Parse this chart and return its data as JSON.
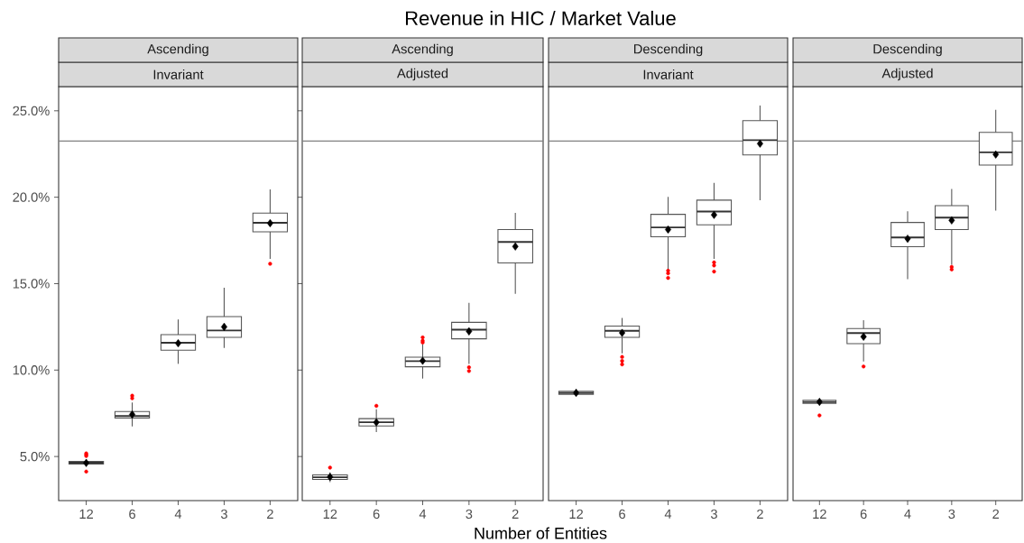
{
  "chart_data": [
    {
      "type": "box",
      "title": "Ascending",
      "subtitle": "Invariant",
      "categories": [
        "12",
        "6",
        "4",
        "3",
        "2"
      ],
      "boxes": [
        {
          "low": 4.5,
          "q1": 4.57,
          "median": 4.64,
          "q3": 4.72,
          "high": 4.85,
          "mean": 4.63,
          "outliers": [
            5.18,
            5.1,
            5.03,
            4.13
          ]
        },
        {
          "low": 6.74,
          "q1": 7.22,
          "median": 7.34,
          "q3": 7.6,
          "high": 8.13,
          "mean": 7.43,
          "outliers": [
            8.52,
            8.37
          ]
        },
        {
          "low": 10.36,
          "q1": 11.15,
          "median": 11.58,
          "q3": 12.05,
          "high": 12.93,
          "mean": 11.55
        },
        {
          "low": 11.28,
          "q1": 11.89,
          "median": 12.29,
          "q3": 13.09,
          "high": 14.76,
          "mean": 12.5
        },
        {
          "low": 16.44,
          "q1": 18.0,
          "median": 18.52,
          "q3": 19.08,
          "high": 20.45,
          "mean": 18.5,
          "outliers": [
            16.15
          ]
        }
      ],
      "ylim": [
        2.45,
        26.4
      ],
      "yticks": [
        {
          "value": 5,
          "label": "5.0%"
        },
        {
          "value": 10,
          "label": "10.0%"
        },
        {
          "value": 15,
          "label": "15.0%"
        },
        {
          "value": 20,
          "label": "20.0%"
        },
        {
          "value": 25,
          "label": "25.0%"
        }
      ],
      "ref_lines": [
        {
          "axis": "y",
          "value": 23.25,
          "color": "#808080"
        }
      ]
    },
    {
      "type": "box",
      "title": "Ascending",
      "subtitle": "Adjusted",
      "annotations": [
        "Revenue in HIC / Market Value"
      ],
      "xlabel": "Number of Entities",
      "categories": [
        "12",
        "6",
        "4",
        "3",
        "2"
      ],
      "boxes": [
        {
          "low": 3.52,
          "q1": 3.68,
          "median": 3.8,
          "q3": 3.94,
          "high": 4.08,
          "mean": 3.82,
          "outliers": [
            4.36
          ]
        },
        {
          "low": 6.42,
          "q1": 6.77,
          "median": 6.98,
          "q3": 7.19,
          "high": 7.73,
          "mean": 6.98,
          "outliers": [
            7.93
          ]
        },
        {
          "low": 9.51,
          "q1": 10.19,
          "median": 10.52,
          "q3": 10.75,
          "high": 11.51,
          "mean": 10.54,
          "outliers": [
            11.89,
            11.7,
            11.6
          ]
        },
        {
          "low": 10.36,
          "q1": 11.81,
          "median": 12.34,
          "q3": 12.76,
          "high": 13.89,
          "mean": 12.24,
          "outliers": [
            10.16,
            9.95
          ]
        },
        {
          "low": 14.41,
          "q1": 16.2,
          "median": 17.41,
          "q3": 18.13,
          "high": 19.1,
          "mean": 17.15
        }
      ],
      "ylim": [
        2.45,
        26.4
      ],
      "tick_labels": "x",
      "ref_lines": [
        {
          "axis": "y",
          "value": 23.25,
          "color": "#808080"
        }
      ]
    },
    {
      "type": "box",
      "title": "Descending",
      "subtitle": "Invariant",
      "categories": [
        "12",
        "6",
        "4",
        "3",
        "2"
      ],
      "boxes": [
        {
          "low": 8.51,
          "q1": 8.6,
          "median": 8.68,
          "q3": 8.77,
          "high": 8.91,
          "mean": 8.68
        },
        {
          "low": 10.97,
          "q1": 11.89,
          "median": 12.27,
          "q3": 12.55,
          "high": 13.02,
          "mean": 12.15,
          "outliers": [
            10.76,
            10.53,
            10.33
          ]
        },
        {
          "low": 15.8,
          "q1": 17.71,
          "median": 18.25,
          "q3": 19.01,
          "high": 20.02,
          "mean": 18.13,
          "outliers": [
            15.75,
            15.6,
            15.33
          ]
        },
        {
          "low": 16.44,
          "q1": 18.4,
          "median": 19.17,
          "q3": 19.83,
          "high": 20.83,
          "mean": 18.98,
          "outliers": [
            16.23,
            16.05,
            15.7
          ]
        },
        {
          "low": 19.83,
          "q1": 22.45,
          "median": 23.3,
          "q3": 24.43,
          "high": 25.31,
          "mean": 23.1
        }
      ],
      "ylim": [
        2.45,
        26.4
      ],
      "tick_labels": "x",
      "ref_lines": [
        {
          "axis": "y",
          "value": 23.25,
          "color": "#808080"
        }
      ]
    },
    {
      "type": "box",
      "title": "Descending",
      "subtitle": "Adjusted",
      "categories": [
        "12",
        "6",
        "4",
        "3",
        "2"
      ],
      "boxes": [
        {
          "low": 8.0,
          "q1": 8.08,
          "median": 8.16,
          "q3": 8.25,
          "high": 8.3,
          "mean": 8.16,
          "outliers": [
            7.38
          ]
        },
        {
          "low": 10.5,
          "q1": 11.53,
          "median": 12.14,
          "q3": 12.4,
          "high": 12.88,
          "mean": 11.93,
          "outliers": [
            10.21
          ]
        },
        {
          "low": 15.26,
          "q1": 17.14,
          "median": 17.67,
          "q3": 18.54,
          "high": 19.18,
          "mean": 17.6
        },
        {
          "low": 16.09,
          "q1": 18.13,
          "median": 18.82,
          "q3": 19.51,
          "high": 20.48,
          "mean": 18.66,
          "outliers": [
            15.97,
            15.82
          ]
        },
        {
          "low": 19.22,
          "q1": 21.86,
          "median": 22.6,
          "q3": 23.75,
          "high": 25.05,
          "mean": 22.47
        }
      ],
      "ylim": [
        2.45,
        26.4
      ],
      "tick_labels": "x",
      "ref_lines": [
        {
          "axis": "y",
          "value": 23.25,
          "color": "#808080"
        }
      ]
    }
  ]
}
